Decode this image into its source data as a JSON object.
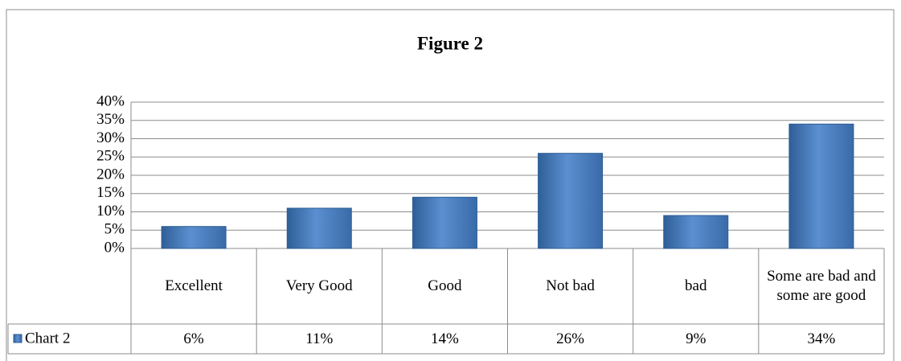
{
  "chart_data": {
    "type": "bar",
    "title": "Figure 2",
    "categories": [
      "Excellent",
      "Very Good",
      "Good",
      "Not bad",
      "bad",
      "Some are bad and some are good"
    ],
    "series": [
      {
        "name": "Chart 2",
        "color": "#4f81bd",
        "values": [
          6,
          11,
          14,
          26,
          9,
          34
        ],
        "value_labels": [
          "6%",
          "11%",
          "14%",
          "26%",
          "9%",
          "34%"
        ]
      }
    ],
    "ylim": [
      0,
      40
    ],
    "yticks": [
      {
        "value": 0,
        "label": "0%"
      },
      {
        "value": 5,
        "label": "5%"
      },
      {
        "value": 10,
        "label": "10%"
      },
      {
        "value": 15,
        "label": "15%"
      },
      {
        "value": 20,
        "label": "20%"
      },
      {
        "value": 25,
        "label": "25%"
      },
      {
        "value": 30,
        "label": "30%"
      },
      {
        "value": 35,
        "label": "35%"
      },
      {
        "value": 40,
        "label": "40%"
      }
    ],
    "grid": true
  }
}
